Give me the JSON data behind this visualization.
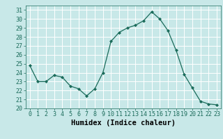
{
  "x": [
    0,
    1,
    2,
    3,
    4,
    5,
    6,
    7,
    8,
    9,
    10,
    11,
    12,
    13,
    14,
    15,
    16,
    17,
    18,
    19,
    20,
    21,
    22,
    23
  ],
  "y": [
    24.8,
    23.0,
    23.0,
    23.7,
    23.5,
    22.5,
    22.2,
    21.4,
    22.2,
    24.0,
    27.5,
    28.5,
    29.0,
    29.3,
    29.8,
    30.8,
    30.0,
    28.7,
    26.5,
    23.8,
    22.3,
    20.8,
    20.5,
    20.4
  ],
  "line_color": "#1a6b5a",
  "marker": "D",
  "marker_size": 2.0,
  "bg_color": "#c8e8e8",
  "grid_color": "#ffffff",
  "xlabel": "Humidex (Indice chaleur)",
  "xlim": [
    -0.5,
    23.5
  ],
  "ylim": [
    20,
    31.5
  ],
  "yticks": [
    20,
    21,
    22,
    23,
    24,
    25,
    26,
    27,
    28,
    29,
    30,
    31
  ],
  "xticks": [
    0,
    1,
    2,
    3,
    4,
    5,
    6,
    7,
    8,
    9,
    10,
    11,
    12,
    13,
    14,
    15,
    16,
    17,
    18,
    19,
    20,
    21,
    22,
    23
  ],
  "tick_fontsize": 6.0,
  "xlabel_fontsize": 7.5
}
